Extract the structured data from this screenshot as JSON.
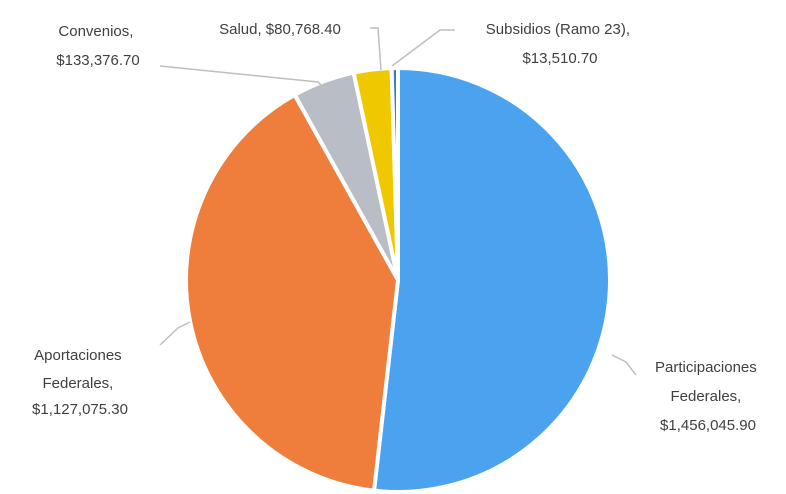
{
  "chart_data": {
    "type": "pie",
    "title": "",
    "slices": [
      {
        "label": "Participaciones Federales",
        "value": 1456045.9,
        "value_label": "$1,456,045.90",
        "color": "#4ba3ef"
      },
      {
        "label": "Aportaciones Federales",
        "value": 1127075.3,
        "value_label": "$1,127,075.30",
        "color": "#ef7d3c"
      },
      {
        "label": "Convenios",
        "value": 133376.7,
        "value_label": "$133,376.70",
        "color": "#b9bec6"
      },
      {
        "label": "Salud",
        "value": 80768.4,
        "value_label": "$80,768.40",
        "color": "#f0c800"
      },
      {
        "label": "Subsidios (Ramo 23)",
        "value": 13510.7,
        "value_label": "$13,510.70",
        "color": "#2f7fd6"
      }
    ],
    "data_labels": {
      "participaciones": [
        "Participaciones",
        "Federales,",
        "$1,456,045.90"
      ],
      "aportaciones": [
        "Aportaciones",
        "Federales,",
        "$1,127,075.30"
      ],
      "convenios": [
        "Convenios,",
        "$133,376.70"
      ],
      "salud": [
        "Salud, $80,768.40"
      ],
      "subsidios": [
        "Subsidios (Ramo 23),",
        "$13,510.70"
      ]
    },
    "legend": "none"
  }
}
